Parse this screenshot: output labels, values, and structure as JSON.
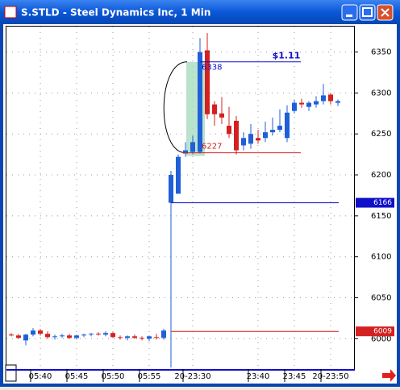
{
  "window_title": "S.STLD - Steel Dynamics Inc, 1 Min",
  "chart_data": {
    "type": "candlestick",
    "categories": [
      null,
      null,
      null,
      null,
      "05:40",
      null,
      null,
      null,
      null,
      "05:45",
      null,
      null,
      null,
      null,
      "05:50",
      null,
      null,
      null,
      null,
      "05:55",
      null,
      null,
      null,
      null,
      null,
      "20-23:30",
      null,
      null,
      null,
      null,
      null,
      null,
      null,
      null,
      "23:40",
      null,
      null,
      null,
      null,
      "23:45",
      null,
      null,
      null,
      null,
      "20-23:50",
      null
    ],
    "open": [
      6005,
      6004,
      5998,
      6005,
      6010,
      6006,
      6002,
      6003,
      6004,
      6001,
      6004,
      6005,
      6006,
      6005,
      6007,
      6002,
      6001,
      6003,
      6001,
      6000,
      6002,
      6001,
      6166,
      6177,
      6226,
      6228,
      6228,
      6352,
      6286,
      6275,
      6260,
      6266,
      6236,
      6238,
      6245,
      6245,
      6252,
      6255,
      6245,
      6278,
      6288,
      6283,
      6286,
      6290,
      6298,
      6288
    ],
    "high": [
      6007,
      6006,
      6006,
      6013,
      6012,
      6009,
      6005,
      6006,
      6006,
      6005,
      6006,
      6007,
      6008,
      6009,
      6008,
      6004,
      6004,
      6005,
      6003,
      6004,
      6006,
      6012,
      6205,
      6225,
      6240,
      6248,
      6367,
      6373,
      6290,
      6295,
      6283,
      6272,
      6252,
      6262,
      6255,
      6265,
      6270,
      6280,
      6285,
      6292,
      6293,
      6290,
      6296,
      6311,
      6300,
      6292
    ],
    "low": [
      6003,
      6000,
      5992,
      6003,
      6004,
      6000,
      5999,
      6001,
      6000,
      5999,
      6002,
      6003,
      6004,
      6003,
      6001,
      5999,
      5998,
      6000,
      5998,
      5997,
      5999,
      5999,
      5965,
      6177,
      6222,
      6225,
      6226,
      6268,
      6260,
      6262,
      6245,
      6225,
      6230,
      6232,
      6238,
      6240,
      6248,
      6252,
      6240,
      6275,
      6282,
      6278,
      6282,
      6286,
      6286,
      6284
    ],
    "close": [
      6004,
      6001,
      6005,
      6010,
      6006,
      6002,
      6003,
      6004,
      6001,
      6004,
      6005,
      6006,
      6005,
      6007,
      6002,
      6001,
      6003,
      6001,
      6000,
      6003,
      6001,
      6010,
      6200,
      6222,
      6230,
      6240,
      6350,
      6274,
      6274,
      6270,
      6250,
      6230,
      6245,
      6250,
      6242,
      6252,
      6255,
      6260,
      6276,
      6288,
      6286,
      6288,
      6290,
      6297,
      6290,
      6290
    ],
    "up_color": "#1f5fd8",
    "down_color": "#d42020",
    "ylim": [
      5963,
      6381
    ],
    "yticks": [
      6000,
      6050,
      6100,
      6150,
      6200,
      6250,
      6300,
      6350
    ],
    "grid": true,
    "range_high": 6338,
    "range_low": 6227,
    "range_label": "$1.11",
    "price_markers": [
      {
        "value": 6166,
        "color": "#1010c8"
      },
      {
        "value": 6009,
        "color": "#d42020"
      }
    ]
  }
}
